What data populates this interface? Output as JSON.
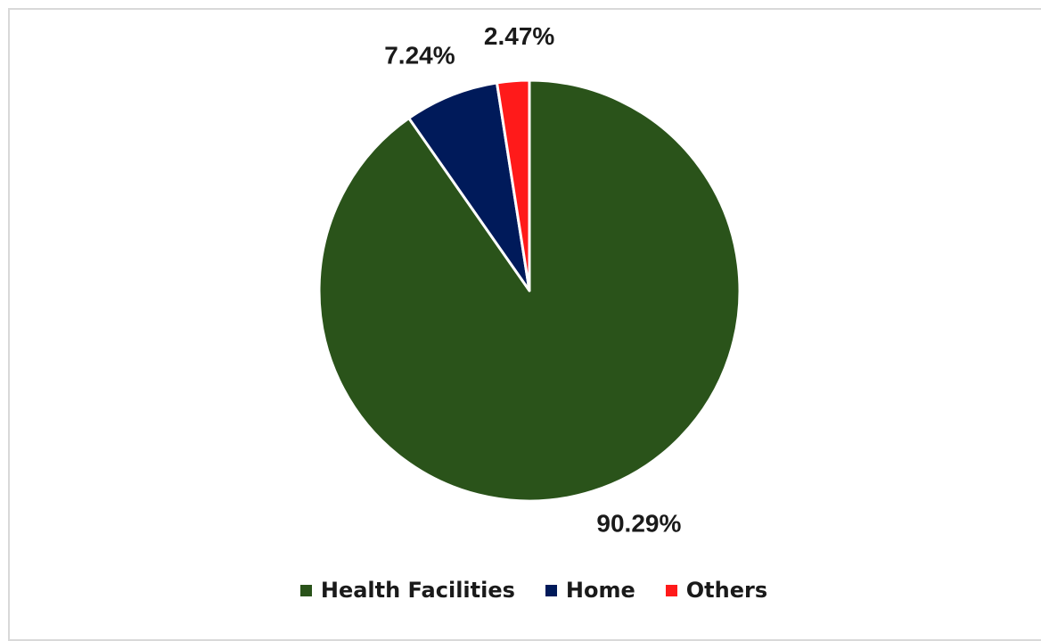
{
  "chart_data": {
    "type": "pie",
    "title": "",
    "slices": [
      {
        "name": "Health Facilities",
        "value": 90.29,
        "label": "90.29%",
        "color": "#2a531a"
      },
      {
        "name": "Home",
        "value": 7.24,
        "label": "7.24%",
        "color": "#001a5a"
      },
      {
        "name": "Others",
        "value": 2.47,
        "label": "2.47%",
        "color": "#ff1a1a"
      }
    ],
    "start_angle": "12 o'clock",
    "direction": "clockwise",
    "legend_position": "bottom"
  }
}
